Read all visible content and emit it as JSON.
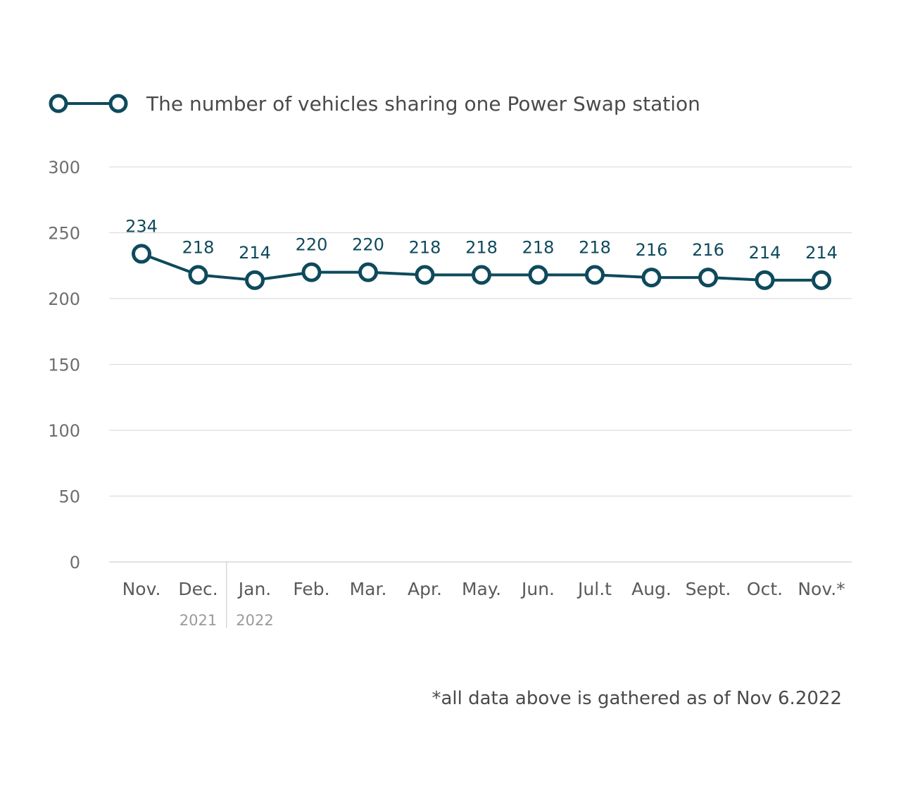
{
  "legend": {
    "label": "The number of vehicles sharing one Power Swap station"
  },
  "footnote": "*all data above is gathered as of Nov 6.2022",
  "year_labels": [
    "2021",
    "2022"
  ],
  "colors": {
    "series": "#0e4a5c",
    "grid": "#dddddd",
    "axis_text": "#6e6e6e"
  },
  "chart_data": {
    "type": "line",
    "categories": [
      "Nov.",
      "Dec.",
      "Jan.",
      "Feb.",
      "Mar.",
      "Apr.",
      "May.",
      "Jun.",
      "Jul.t",
      "Aug.",
      "Sept.",
      "Oct.",
      "Nov.*"
    ],
    "series": [
      {
        "name": "The number of vehicles sharing one Power Swap station",
        "values": [
          234,
          218,
          214,
          220,
          220,
          218,
          218,
          218,
          218,
          216,
          216,
          214,
          214
        ]
      }
    ],
    "yticks": [
      0,
      50,
      100,
      150,
      200,
      250,
      300
    ],
    "ylim": [
      0,
      300
    ],
    "grid": true,
    "legend_position": "top-left",
    "marker": "hollow-circle"
  }
}
